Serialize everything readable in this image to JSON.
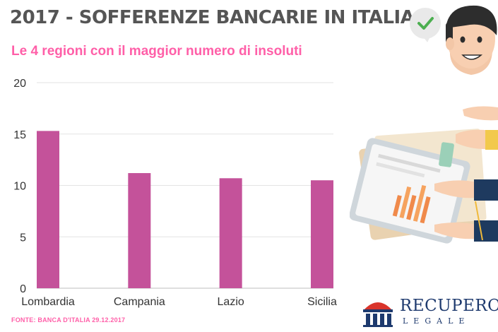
{
  "header": {
    "title": "2017 - SOFFERENZE BANCARIE IN ITALIA",
    "subtitle": "Le 4 regioni con il maggior numero di insoluti"
  },
  "footer": {
    "source": "FONTE: BANCA D'ITALIA 29.12.2017"
  },
  "logo": {
    "word": "RECUPERO",
    "sub": "LEGALE"
  },
  "colors": {
    "bar": "#c4529a",
    "title": "#555555",
    "accent": "#ff5fa8",
    "logo": "#1e3a6e"
  },
  "icons": [
    "person-avatar-icon",
    "checkmark-bubble-icon",
    "report-documents-hands-icon",
    "bank-pillar-logo-icon"
  ],
  "chart_data": {
    "type": "bar",
    "categories": [
      "Lombardia",
      "Campania",
      "Lazio",
      "Sicilia"
    ],
    "values": [
      15.3,
      11.2,
      10.7,
      10.5
    ],
    "ylim": [
      0,
      20
    ],
    "yticks": [
      0,
      5,
      10,
      15,
      20
    ],
    "grid": true,
    "legend": "none"
  }
}
